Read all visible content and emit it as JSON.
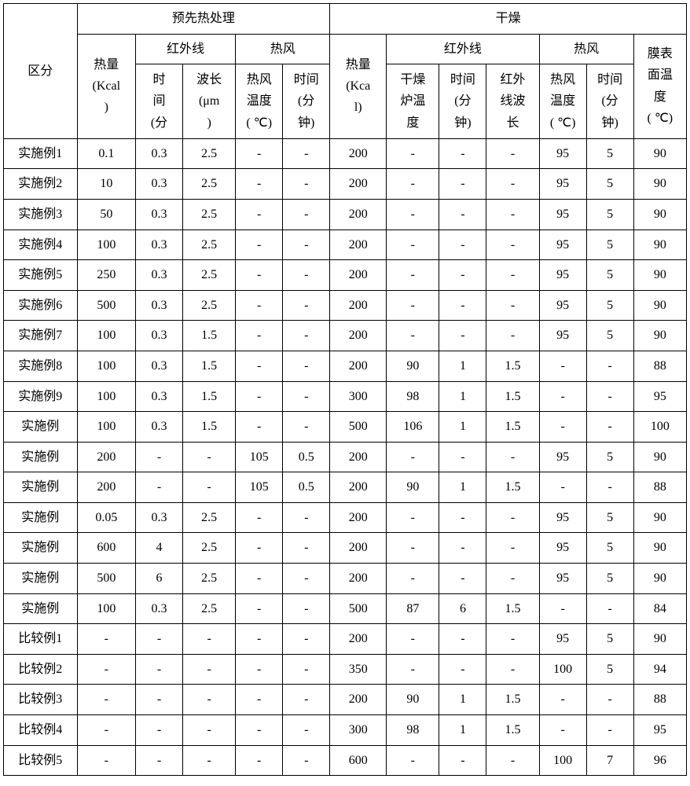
{
  "headers": {
    "category": "区分",
    "pre_heat": "预先热处理",
    "drying": "干燥",
    "heat_amount_pre": "热量<br>(Kcal<br>)",
    "infrared": "红外线",
    "hot_air": "热风",
    "ir_time_pre": "时<br>间<br>(分",
    "ir_wave_pre": "波长<br>(μm<br>)",
    "ha_temp_pre": "热风<br>温度<br>( ℃)",
    "ha_time_pre": "时间<br>(分<br>钟)",
    "heat_amount_dry": "热量<br>(Kca<br>l)",
    "oven_temp": "干燥<br>炉温<br>度",
    "ir_time_dry": "时间<br>(分<br>钟)",
    "ir_wave_dry": "红外<br>线波<br>长",
    "ha_temp_dry": "热风<br>温度<br>( ℃)",
    "ha_time_dry": "时间<br>(分<br>钟)",
    "membrane_temp": "膜表<br>面温<br>度<br>( ℃)"
  },
  "rows": [
    {
      "label": "实施例1",
      "vals": [
        "0.1",
        "0.3",
        "2.5",
        "-",
        "-",
        "200",
        "-",
        "-",
        "-",
        "95",
        "5",
        "90"
      ]
    },
    {
      "label": "实施例2",
      "vals": [
        "10",
        "0.3",
        "2.5",
        "-",
        "-",
        "200",
        "-",
        "-",
        "-",
        "95",
        "5",
        "90"
      ]
    },
    {
      "label": "实施例3",
      "vals": [
        "50",
        "0.3",
        "2.5",
        "-",
        "-",
        "200",
        "-",
        "-",
        "-",
        "95",
        "5",
        "90"
      ]
    },
    {
      "label": "实施例4",
      "vals": [
        "100",
        "0.3",
        "2.5",
        "-",
        "-",
        "200",
        "-",
        "-",
        "-",
        "95",
        "5",
        "90"
      ]
    },
    {
      "label": "实施例5",
      "vals": [
        "250",
        "0.3",
        "2.5",
        "-",
        "-",
        "200",
        "-",
        "-",
        "-",
        "95",
        "5",
        "90"
      ]
    },
    {
      "label": "实施例6",
      "vals": [
        "500",
        "0.3",
        "2.5",
        "-",
        "-",
        "200",
        "-",
        "-",
        "-",
        "95",
        "5",
        "90"
      ]
    },
    {
      "label": "实施例7",
      "vals": [
        "100",
        "0.3",
        "1.5",
        "-",
        "-",
        "200",
        "-",
        "-",
        "-",
        "95",
        "5",
        "90"
      ]
    },
    {
      "label": "实施例8",
      "vals": [
        "100",
        "0.3",
        "1.5",
        "-",
        "-",
        "200",
        "90",
        "1",
        "1.5",
        "-",
        "-",
        "88"
      ]
    },
    {
      "label": "实施例9",
      "vals": [
        "100",
        "0.3",
        "1.5",
        "-",
        "-",
        "300",
        "98",
        "1",
        "1.5",
        "-",
        "-",
        "95"
      ]
    },
    {
      "label": "实施例",
      "vals": [
        "100",
        "0.3",
        "1.5",
        "-",
        "-",
        "500",
        "106",
        "1",
        "1.5",
        "-",
        "-",
        "100"
      ]
    },
    {
      "label": "实施例",
      "vals": [
        "200",
        "-",
        "-",
        "105",
        "0.5",
        "200",
        "-",
        "-",
        "-",
        "95",
        "5",
        "90"
      ]
    },
    {
      "label": "实施例",
      "vals": [
        "200",
        "-",
        "-",
        "105",
        "0.5",
        "200",
        "90",
        "1",
        "1.5",
        "-",
        "-",
        "88"
      ]
    },
    {
      "label": "实施例",
      "vals": [
        "0.05",
        "0.3",
        "2.5",
        "-",
        "-",
        "200",
        "-",
        "-",
        "-",
        "95",
        "5",
        "90"
      ]
    },
    {
      "label": "实施例",
      "vals": [
        "600",
        "4",
        "2.5",
        "-",
        "-",
        "200",
        "-",
        "-",
        "-",
        "95",
        "5",
        "90"
      ]
    },
    {
      "label": "实施例",
      "vals": [
        "500",
        "6",
        "2.5",
        "-",
        "-",
        "200",
        "-",
        "-",
        "-",
        "95",
        "5",
        "90"
      ]
    },
    {
      "label": "实施例",
      "vals": [
        "100",
        "0.3",
        "2.5",
        "-",
        "-",
        "500",
        "87",
        "6",
        "1.5",
        "-",
        "-",
        "84"
      ]
    },
    {
      "label": "比较例1",
      "vals": [
        "-",
        "-",
        "-",
        "-",
        "-",
        "200",
        "-",
        "-",
        "-",
        "95",
        "5",
        "90"
      ]
    },
    {
      "label": "比较例2",
      "vals": [
        "-",
        "-",
        "-",
        "-",
        "-",
        "350",
        "-",
        "-",
        "-",
        "100",
        "5",
        "94"
      ]
    },
    {
      "label": "比较例3",
      "vals": [
        "-",
        "-",
        "-",
        "-",
        "-",
        "200",
        "90",
        "1",
        "1.5",
        "-",
        "-",
        "88"
      ]
    },
    {
      "label": "比较例4",
      "vals": [
        "-",
        "-",
        "-",
        "-",
        "-",
        "300",
        "98",
        "1",
        "1.5",
        "-",
        "-",
        "95"
      ]
    },
    {
      "label": "比较例5",
      "vals": [
        "-",
        "-",
        "-",
        "-",
        "-",
        "600",
        "-",
        "-",
        "-",
        "100",
        "7",
        "96"
      ]
    }
  ]
}
